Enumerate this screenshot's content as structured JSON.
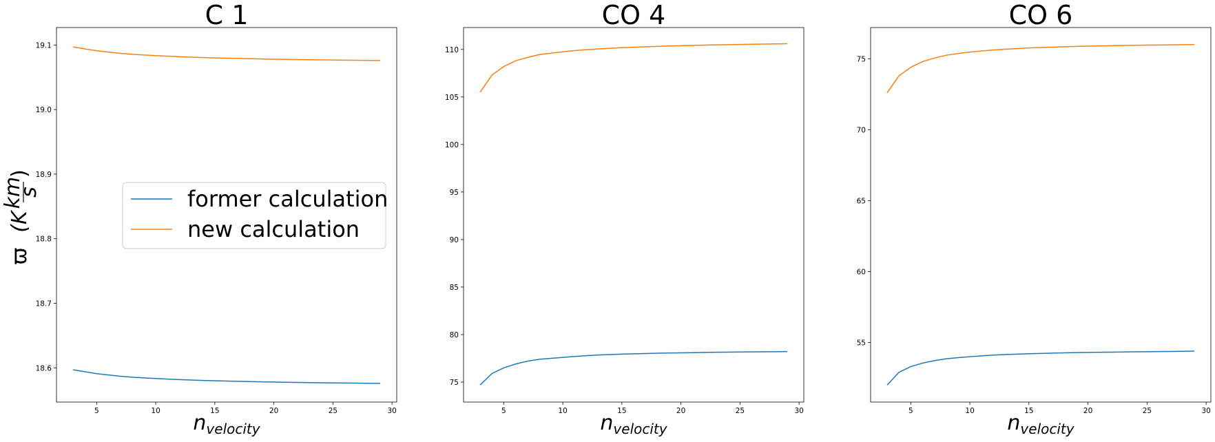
{
  "chart_data": [
    {
      "type": "line",
      "title": "C 1",
      "xlabel": {
        "base": "n",
        "sub": "velocity"
      },
      "ylabel": {
        "symbol": "ϖ",
        "unit_prefix": "(K",
        "frac_num": "km",
        "frac_den": "s",
        "close": ")"
      },
      "xlim": [
        1.6,
        30.4
      ],
      "ylim": [
        18.547,
        19.127
      ],
      "xticks": [
        5,
        10,
        15,
        20,
        25,
        30
      ],
      "yticks": [
        18.6,
        18.7,
        18.8,
        18.9,
        19.0,
        19.1
      ],
      "ytick_labels": [
        "18.6",
        "18.7",
        "18.8",
        "18.9",
        "19.0",
        "19.1"
      ],
      "legend": {
        "placement": "center-right",
        "entries": [
          "former calculation",
          "new calculation"
        ]
      },
      "x": [
        3,
        4,
        5,
        6,
        7,
        8,
        9,
        10,
        11,
        12,
        13,
        14,
        15,
        16,
        17,
        18,
        19,
        20,
        21,
        22,
        23,
        24,
        25,
        26,
        27,
        28,
        29
      ],
      "series": [
        {
          "name": "former calculation",
          "color": "#1f77b4",
          "values": [
            18.597,
            18.594,
            18.591,
            18.589,
            18.587,
            18.5855,
            18.5845,
            18.5835,
            18.5826,
            18.5818,
            18.5811,
            18.5805,
            18.58,
            18.5795,
            18.5791,
            18.5787,
            18.5783,
            18.578,
            18.5777,
            18.5774,
            18.5771,
            18.5769,
            18.5767,
            18.5765,
            18.5763,
            18.5761,
            18.576
          ]
        },
        {
          "name": "new calculation",
          "color": "#ff7f0e",
          "values": [
            19.097,
            19.094,
            19.091,
            19.089,
            19.087,
            19.0855,
            19.0845,
            19.0835,
            19.0826,
            19.0818,
            19.0811,
            19.0805,
            19.08,
            19.0795,
            19.0791,
            19.0787,
            19.0783,
            19.078,
            19.0777,
            19.0774,
            19.0771,
            19.0769,
            19.0767,
            19.0765,
            19.0763,
            19.0761,
            19.076
          ]
        }
      ]
    },
    {
      "type": "line",
      "title": "CO 4",
      "xlabel": {
        "base": "n",
        "sub": "velocity"
      },
      "xlim": [
        1.6,
        30.4
      ],
      "ylim": [
        72.9,
        112.3
      ],
      "xticks": [
        5,
        10,
        15,
        20,
        25,
        30
      ],
      "yticks": [
        75,
        80,
        85,
        90,
        95,
        100,
        105,
        110
      ],
      "ytick_labels": [
        "75",
        "80",
        "85",
        "90",
        "95",
        "100",
        "105",
        "110"
      ],
      "x": [
        3,
        4,
        5,
        6,
        7,
        8,
        9,
        10,
        11,
        12,
        13,
        14,
        15,
        16,
        17,
        18,
        19,
        20,
        21,
        22,
        23,
        24,
        25,
        26,
        27,
        28,
        29
      ],
      "series": [
        {
          "name": "former calculation",
          "color": "#1f77b4",
          "values": [
            74.7,
            75.9,
            76.5,
            76.9,
            77.2,
            77.4,
            77.5,
            77.6,
            77.7,
            77.78,
            77.85,
            77.9,
            77.94,
            77.98,
            78.01,
            78.04,
            78.06,
            78.08,
            78.1,
            78.12,
            78.14,
            78.15,
            78.17,
            78.18,
            78.19,
            78.2,
            78.21
          ]
        },
        {
          "name": "new calculation",
          "color": "#ff7f0e",
          "values": [
            105.5,
            107.3,
            108.2,
            108.8,
            109.15,
            109.45,
            109.6,
            109.75,
            109.87,
            109.97,
            110.05,
            110.12,
            110.18,
            110.23,
            110.28,
            110.32,
            110.36,
            110.39,
            110.42,
            110.45,
            110.48,
            110.5,
            110.52,
            110.54,
            110.56,
            110.58,
            110.6
          ]
        }
      ]
    },
    {
      "type": "line",
      "title": "CO 6",
      "xlabel": {
        "base": "n",
        "sub": "velocity"
      },
      "xlim": [
        1.6,
        30.4
      ],
      "ylim": [
        50.8,
        77.2
      ],
      "xticks": [
        5,
        10,
        15,
        20,
        25,
        30
      ],
      "yticks": [
        55,
        60,
        65,
        70,
        75
      ],
      "ytick_labels": [
        "55",
        "60",
        "65",
        "70",
        "75"
      ],
      "x": [
        3,
        4,
        5,
        6,
        7,
        8,
        9,
        10,
        11,
        12,
        13,
        14,
        15,
        16,
        17,
        18,
        19,
        20,
        21,
        22,
        23,
        24,
        25,
        26,
        27,
        28,
        29
      ],
      "series": [
        {
          "name": "former calculation",
          "color": "#1f77b4",
          "values": [
            52.0,
            52.9,
            53.3,
            53.55,
            53.72,
            53.85,
            53.93,
            54.0,
            54.06,
            54.11,
            54.15,
            54.18,
            54.21,
            54.23,
            54.25,
            54.27,
            54.29,
            54.3,
            54.31,
            54.32,
            54.33,
            54.34,
            54.35,
            54.36,
            54.37,
            54.38,
            54.39
          ]
        },
        {
          "name": "new calculation",
          "color": "#ff7f0e",
          "values": [
            72.6,
            73.8,
            74.4,
            74.8,
            75.05,
            75.25,
            75.37,
            75.47,
            75.55,
            75.62,
            75.67,
            75.72,
            75.76,
            75.79,
            75.82,
            75.85,
            75.87,
            75.89,
            75.91,
            75.92,
            75.94,
            75.95,
            75.96,
            75.97,
            75.98,
            75.99,
            76.0
          ]
        }
      ]
    }
  ]
}
